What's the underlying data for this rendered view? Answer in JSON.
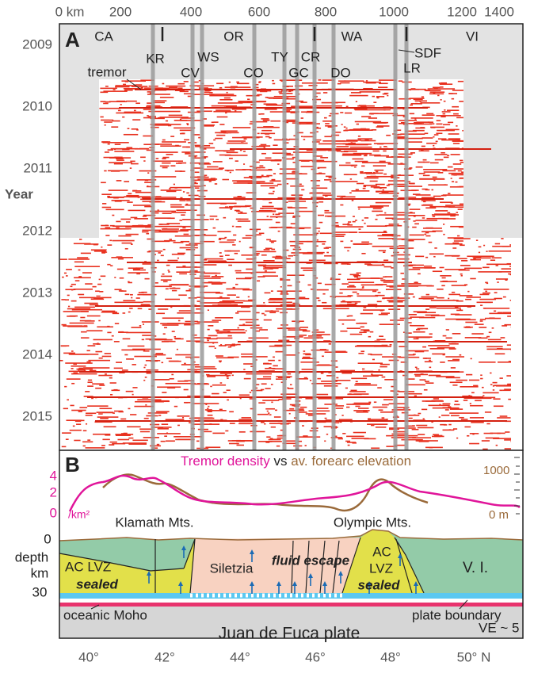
{
  "panel_a": {
    "label": "A",
    "x_ticks": [
      "0 km",
      "200",
      "400",
      "600",
      "800",
      "1000",
      "1200",
      "1400"
    ],
    "years": [
      "2009",
      "2010",
      "2011",
      "2012",
      "2013",
      "2014",
      "2015"
    ],
    "y_label": "Year",
    "regions": [
      "CA",
      "OR",
      "WA",
      "VI"
    ],
    "sites": [
      "KR",
      "CV",
      "WS",
      "CO",
      "TY",
      "GC",
      "CR",
      "DO",
      "SDF",
      "LR"
    ],
    "annotation": "tremor"
  },
  "panel_b": {
    "label": "B",
    "title": {
      "part1": "Tremor density",
      "part2": "vs",
      "part3": "av. forearc elevation"
    },
    "left_ticks": [
      "4",
      "2",
      "0"
    ],
    "left_unit": "/km²",
    "right_ticks": [
      "1000",
      "0 m"
    ],
    "mountains": [
      "Klamath Mts.",
      "Olympic Mts."
    ],
    "depth_ticks": [
      "0",
      "30"
    ],
    "depth_label": [
      "depth",
      "km"
    ],
    "units": {
      "left_lvz": [
        "AC LVZ",
        "sealed"
      ],
      "siletzia": "Siletzia",
      "fluid": "fluid escape",
      "right_lvz": [
        "AC",
        "LVZ",
        "sealed"
      ],
      "vi": "V. I."
    },
    "oceanic_moho": "oceanic Moho",
    "plate_boundary": "plate boundary",
    "plate": "Juan de Fuca plate",
    "ve": "VE ~ 5"
  },
  "lat_ticks": [
    "40°",
    "42°",
    "44°",
    "46°",
    "48°",
    "50° N"
  ]
}
